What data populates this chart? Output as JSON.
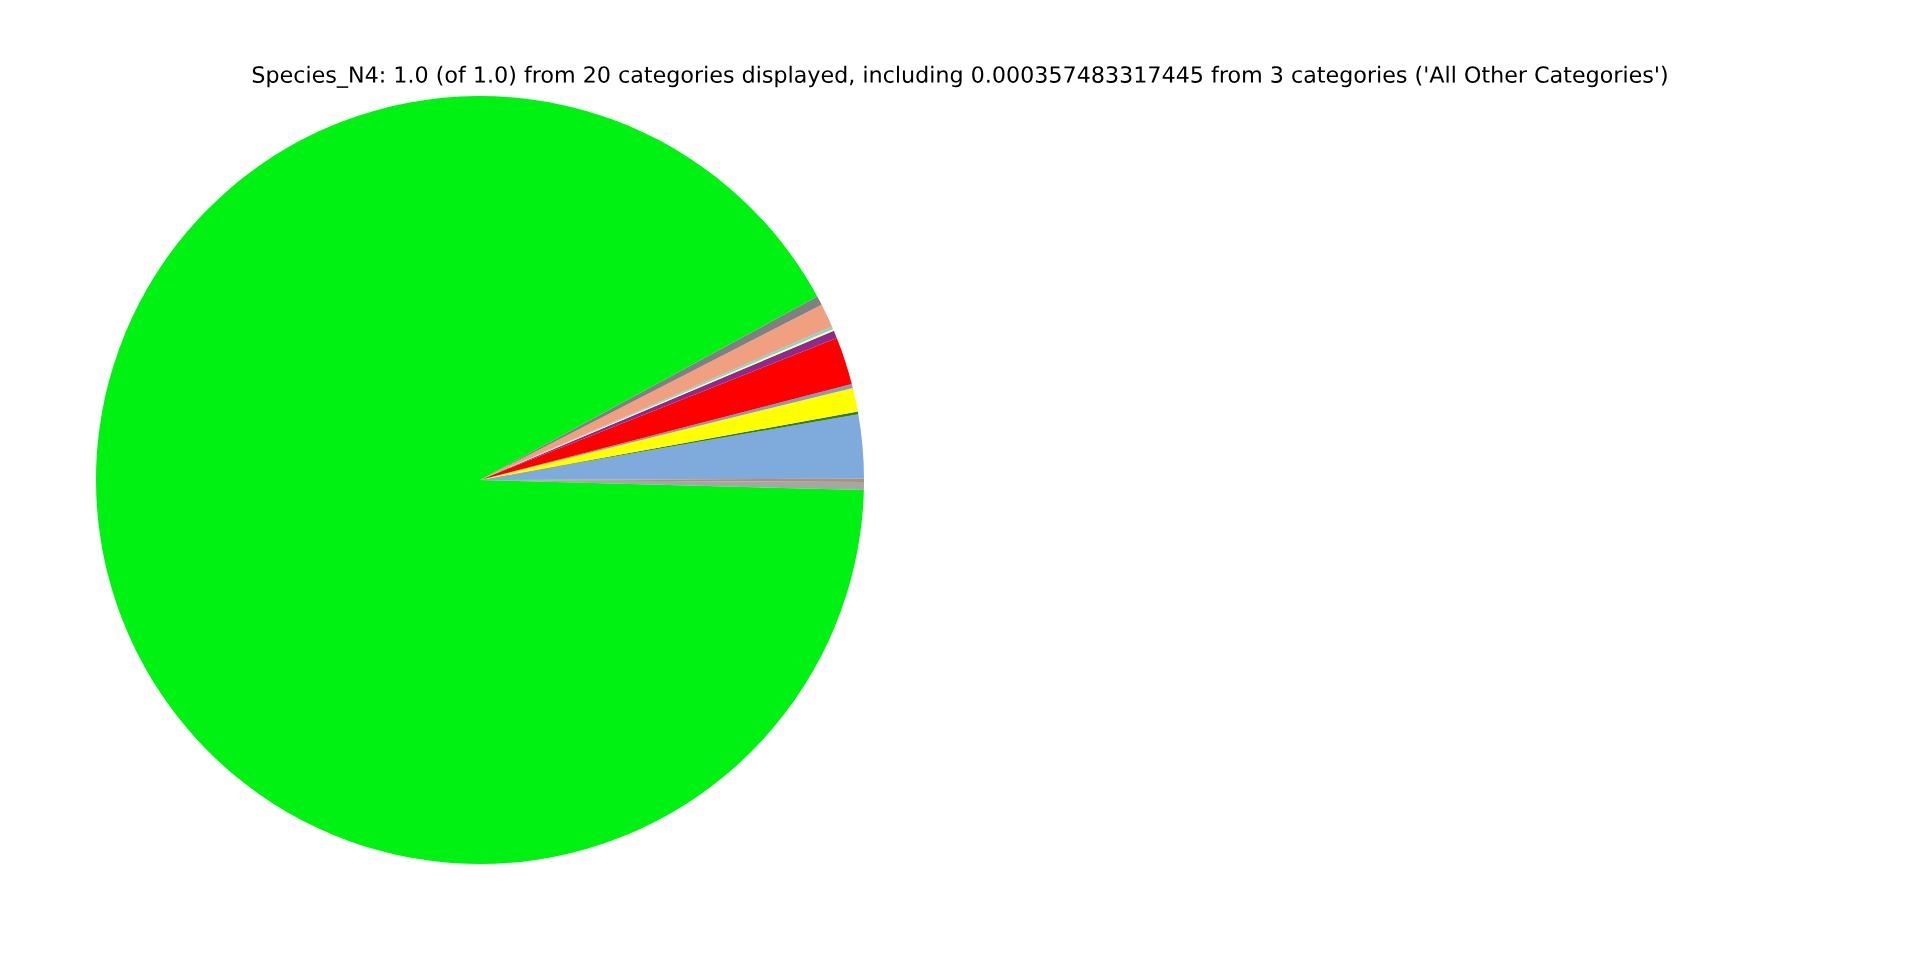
{
  "chart_data": {
    "type": "pie",
    "title": "Species_N4: 1.0 (of 1.0) from 20 categories displayed, including 0.000357483317445 from 3 categories ('All Other Categories')",
    "categories": [
      null,
      null,
      null,
      null,
      null,
      null,
      null,
      null,
      null,
      null,
      null,
      null,
      null
    ],
    "values": [
      0.33,
      0.14,
      2.69,
      0.11,
      1.0,
      0.17,
      2.0,
      0.33,
      0.08,
      0.11,
      1.0,
      0.39,
      91.64
    ],
    "colors": [
      "#a6a6a6",
      "#b09070",
      "#7faadc",
      "#2e7d32",
      "#ffff00",
      "#8899bb",
      "#ff0000",
      "#8e2a8e",
      "#ffff99",
      "#7fd6d6",
      "#f0a080",
      "#808080",
      "#00f212"
    ]
  }
}
